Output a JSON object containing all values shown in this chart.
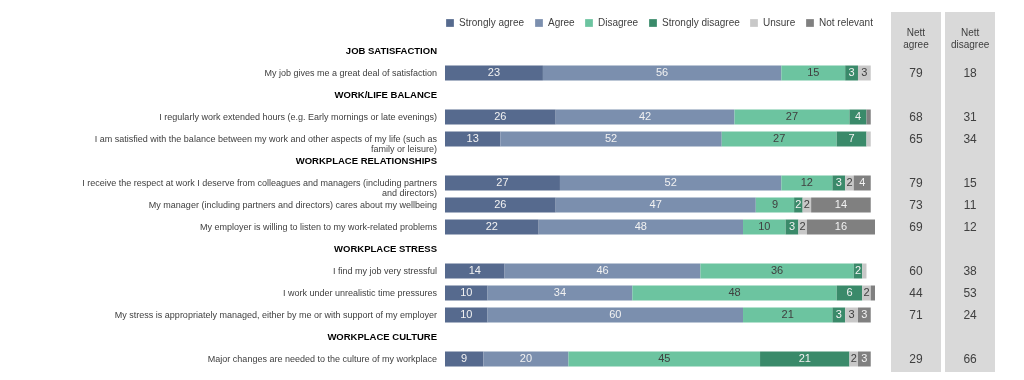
{
  "chart_data": [
    {
      "type": "bar",
      "orientation": "horizontal",
      "stacked": true,
      "legend": "top",
      "categories": [
        "JOB SATISFACTION",
        "My job gives me a great deal of satisfaction",
        "WORK/LIFE BALANCE",
        "I regularly work extended hours (e.g. Early mornings or late evenings)",
        "I am satisfied with the balance between my work and other aspects of my life (such as family or leisure)",
        "WORKPLACE RELATIONSHIPS",
        "I receive the respect at work I deserve from colleagues and managers (including partners and directors)",
        "My manager (including partners and directors) cares about my wellbeing",
        "My employer is willing to listen to my work-related problems",
        "WORKPLACE STRESS",
        "I find my job very stressful",
        "I work under unrealistic time pressures",
        "My stress is appropriately managed, either by me or with support of my employer",
        "WORKPLACE CULTURE",
        "Major changes are needed to the culture of my workplace"
      ],
      "series": [
        {
          "name": "Strongly agree",
          "color": "#566a8e",
          "values": [
            null,
            23,
            null,
            26,
            13,
            null,
            27,
            26,
            22,
            null,
            14,
            10,
            10,
            null,
            9
          ],
          "value_labels": [
            null,
            "23",
            null,
            "26",
            "13",
            null,
            "27",
            "26",
            "22",
            null,
            "14",
            "10",
            "10",
            null,
            "9"
          ]
        },
        {
          "name": "Agree",
          "color": "#7b8fae",
          "values": [
            null,
            56,
            null,
            42,
            52,
            null,
            52,
            47,
            48,
            null,
            46,
            34,
            60,
            null,
            20
          ],
          "value_labels": [
            null,
            "56",
            null,
            "42",
            "52",
            null,
            "52",
            "47",
            "48",
            null,
            "46",
            "34",
            "60",
            null,
            "20"
          ]
        },
        {
          "name": "Disagree",
          "color": "#6cc4a0",
          "values": [
            null,
            15,
            null,
            27,
            27,
            null,
            12,
            9,
            10,
            null,
            36,
            48,
            21,
            null,
            45
          ],
          "value_labels": [
            null,
            "15",
            null,
            "27",
            "27",
            null,
            "12",
            "9",
            "10",
            null,
            "36",
            "48",
            "21",
            null,
            "45"
          ]
        },
        {
          "name": "Strongly disagree",
          "color": "#3a8a6a",
          "values": [
            null,
            3,
            null,
            4,
            7,
            null,
            3,
            2,
            3,
            null,
            2,
            6,
            3,
            null,
            21
          ],
          "value_labels": [
            null,
            "3",
            null,
            "4",
            "7",
            null,
            "3",
            "2",
            "3",
            null,
            "2",
            "6",
            "3",
            null,
            "21"
          ]
        },
        {
          "name": "Unsure",
          "color": "#c8c8c8",
          "values": [
            null,
            3,
            null,
            null,
            1,
            null,
            2,
            2,
            2,
            null,
            1,
            2,
            3,
            null,
            2
          ],
          "value_labels": [
            null,
            "3",
            null,
            null,
            null,
            null,
            "2",
            "2",
            "2",
            null,
            null,
            "2",
            "3",
            null,
            "2"
          ]
        },
        {
          "name": "Not relevant",
          "color": "#808080",
          "values": [
            null,
            null,
            null,
            1,
            null,
            null,
            4,
            14,
            16,
            null,
            null,
            1,
            3,
            null,
            3
          ],
          "value_labels": [
            null,
            null,
            null,
            null,
            null,
            null,
            "4",
            "14",
            "16",
            null,
            null,
            null,
            "3",
            null,
            "3"
          ]
        }
      ]
    },
    {
      "type": "heatmap",
      "tick_labels": "x",
      "data_labels": true,
      "categories": [
        "Nett agree",
        "Nett disagree"
      ],
      "y_categories": [
        null,
        null,
        null,
        null,
        null,
        null,
        null,
        null,
        null,
        null
      ],
      "cells": [
        [
          79,
          18
        ],
        [
          68,
          31
        ],
        [
          65,
          34
        ],
        [
          79,
          15
        ],
        [
          73,
          11
        ],
        [
          69,
          12
        ],
        [
          60,
          38
        ],
        [
          44,
          53
        ],
        [
          71,
          24
        ],
        [
          29,
          66
        ]
      ]
    }
  ]
}
